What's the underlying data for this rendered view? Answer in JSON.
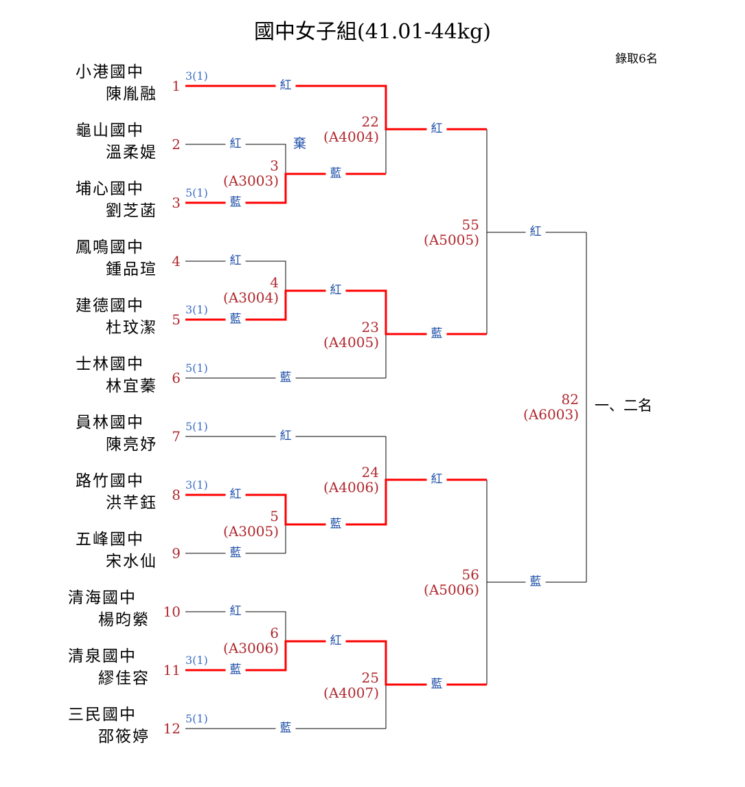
{
  "title": "國中女子組(41.01-44kg)",
  "quota": "錄取6名",
  "forfeit": "棄",
  "final_label": "一、二名",
  "colors": {
    "winner_line": "#ff0000",
    "seed_number": "#b0272d",
    "corner_label": "#1f4fa8"
  },
  "entrants": [
    {
      "no": "1",
      "school": "小港國中",
      "name": "陳胤融",
      "score": "3(1)"
    },
    {
      "no": "2",
      "school": "龜山國中",
      "name": "溫柔媞",
      "score": ""
    },
    {
      "no": "3",
      "school": "埔心國中",
      "name": "劉芝菡",
      "score": "5(1)"
    },
    {
      "no": "4",
      "school": "鳳鳴國中",
      "name": "鍾品瑄",
      "score": ""
    },
    {
      "no": "5",
      "school": "建德國中",
      "name": "杜玟潔",
      "score": "3(1)"
    },
    {
      "no": "6",
      "school": "士林國中",
      "name": "林宜蓁",
      "score": "5(1)"
    },
    {
      "no": "7",
      "school": "員林國中",
      "name": "陳亮妤",
      "score": "5(1)"
    },
    {
      "no": "8",
      "school": "路竹國中",
      "name": "洪芊鈺",
      "score": "3(1)"
    },
    {
      "no": "9",
      "school": "五峰國中",
      "name": "宋水仙",
      "score": ""
    },
    {
      "no": "10",
      "school": "清海國中",
      "name": "楊昀縈",
      "score": ""
    },
    {
      "no": "11",
      "school": "清泉國中",
      "name": "繆佳容",
      "score": "3(1)"
    },
    {
      "no": "12",
      "school": "三民國中",
      "name": "邵筱婷",
      "score": "5(1)"
    }
  ],
  "matches": [
    {
      "no": "3",
      "code": "(A3003)",
      "red": "紅",
      "blue": "藍"
    },
    {
      "no": "4",
      "code": "(A3004)",
      "red": "紅",
      "blue": "藍"
    },
    {
      "no": "5",
      "code": "(A3005)",
      "red": "紅",
      "blue": "藍"
    },
    {
      "no": "6",
      "code": "(A3006)",
      "red": "紅",
      "blue": "藍"
    },
    {
      "no": "22",
      "code": "(A4004)",
      "red": "紅",
      "blue": "藍"
    },
    {
      "no": "23",
      "code": "(A4005)",
      "red": "紅",
      "blue": "藍"
    },
    {
      "no": "24",
      "code": "(A4006)",
      "red": "紅",
      "blue": "藍"
    },
    {
      "no": "25",
      "code": "(A4007)",
      "red": "紅",
      "blue": "藍"
    },
    {
      "no": "55",
      "code": "(A5005)",
      "red": "紅",
      "blue": "藍"
    },
    {
      "no": "56",
      "code": "(A5006)",
      "red": "紅",
      "blue": "藍"
    },
    {
      "no": "82",
      "code": "(A6003)",
      "red": "紅",
      "blue": "藍"
    }
  ]
}
